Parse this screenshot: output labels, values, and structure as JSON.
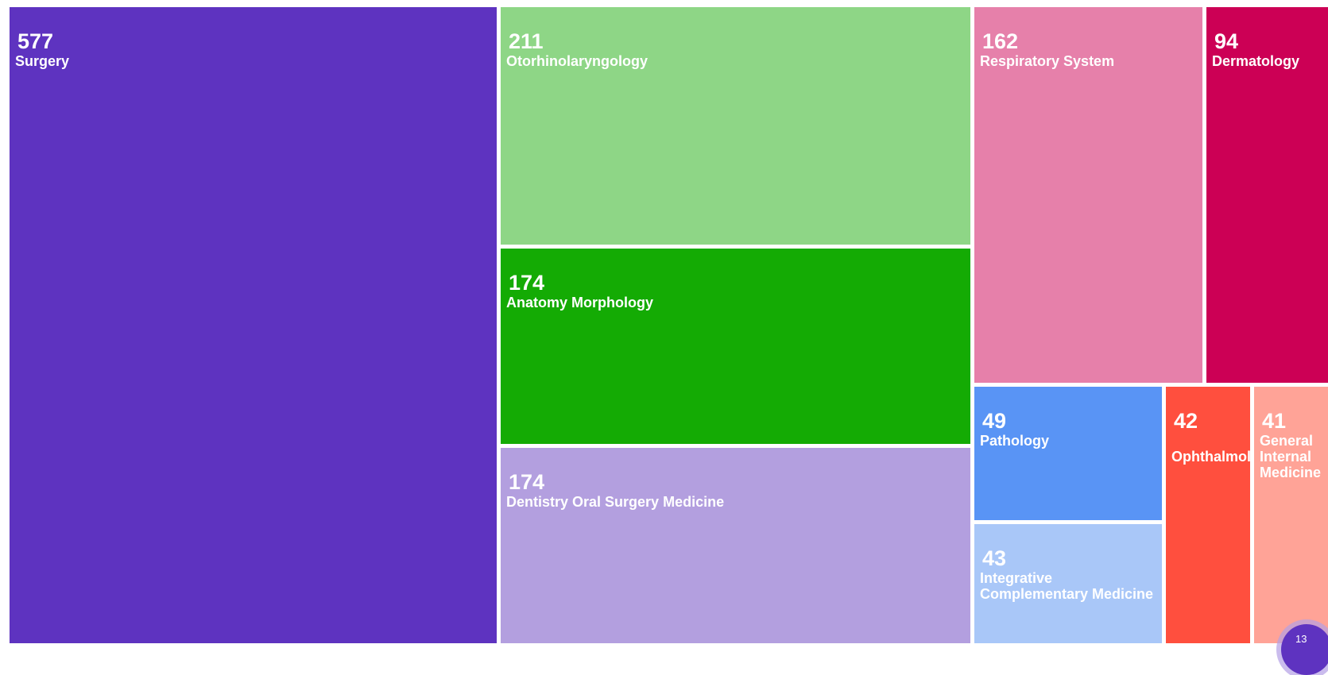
{
  "chart_data": {
    "type": "treemap",
    "series": [
      {
        "label": "Surgery",
        "value": 577,
        "color": "#5e33c0"
      },
      {
        "label": "Otorhinolaryngology",
        "value": 211,
        "color": "#8ed686"
      },
      {
        "label": "Anatomy Morphology",
        "value": 174,
        "color": "#14ab04"
      },
      {
        "label": "Dentistry Oral Surgery Medicine",
        "value": 174,
        "color": "#b39fdf"
      },
      {
        "label": "Respiratory System",
        "value": 162,
        "color": "#e680aa"
      },
      {
        "label": "Dermatology",
        "value": 94,
        "color": "#cc0055"
      },
      {
        "label": "Pathology",
        "value": 49,
        "color": "#5994f5"
      },
      {
        "label": "Integrative Complementary Medicine",
        "value": 43,
        "color": "#a9c7f8"
      },
      {
        "label": "Ophthalmology",
        "value": 42,
        "color": "#ff4f3e"
      },
      {
        "label": "General Internal Medicine",
        "value": 41,
        "color": "#ffa397"
      }
    ]
  },
  "page_indicator": "13"
}
